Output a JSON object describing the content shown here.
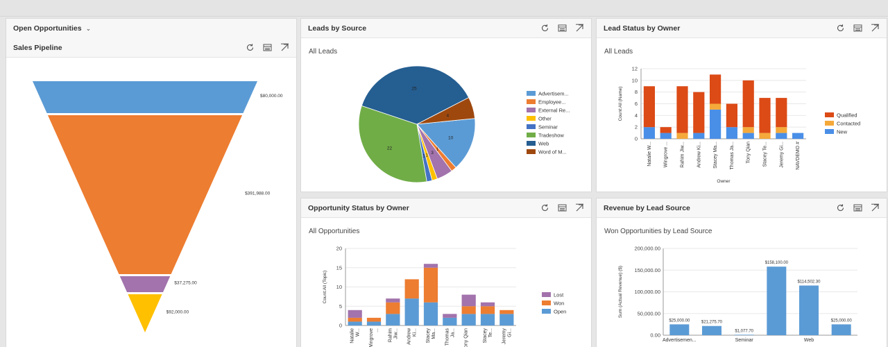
{
  "dashboard": {
    "view_selector": "Open Opportunities"
  },
  "panels": {
    "pipeline": {
      "title": "Sales Pipeline"
    },
    "leads_source": {
      "title": "Leads by Source",
      "subtitle": "All Leads"
    },
    "lead_status": {
      "title": "Lead Status by Owner",
      "subtitle": "All Leads"
    },
    "opp_status": {
      "title": "Opportunity Status by Owner",
      "subtitle": "All Opportunities"
    },
    "revenue": {
      "title": "Revenue by Lead Source",
      "subtitle": "Won Opportunities by Lead Source"
    }
  },
  "icons": [
    "refresh-icon",
    "view-records-icon",
    "expand-icon"
  ],
  "chart_data": [
    {
      "id": "pipeline",
      "type": "funnel",
      "title": "Sales Pipeline",
      "stages": [
        {
          "value": 80000,
          "label": "$80,000.00",
          "color": "#5b9bd5"
        },
        {
          "value": 391988,
          "label": "$391,988.00",
          "color": "#ed7d31"
        },
        {
          "value": 37275,
          "label": "$37,275.00",
          "color": "#a273ac"
        },
        {
          "value": 92000,
          "label": "$92,000.00",
          "color": "#ffc000"
        }
      ]
    },
    {
      "id": "leads_source",
      "type": "pie",
      "title": "Leads by Source",
      "slices": [
        {
          "name": "Advertisem...",
          "value": 10,
          "color": "#5b9bd5"
        },
        {
          "name": "Employee...",
          "value": 1,
          "color": "#ed7d31"
        },
        {
          "name": "External Re...",
          "value": 3,
          "color": "#a273ac"
        },
        {
          "name": "Other",
          "value": 1,
          "color": "#ffc000"
        },
        {
          "name": "Seminar",
          "value": 1,
          "color": "#4472c4"
        },
        {
          "name": "Tradeshow",
          "value": 22,
          "color": "#70ad47"
        },
        {
          "name": "Web",
          "value": 25,
          "color": "#255e91"
        },
        {
          "name": "Word of M...",
          "value": 4,
          "color": "#9e480e"
        }
      ],
      "labels_shown": [
        "10",
        "3",
        "1",
        "22",
        "25",
        "4"
      ]
    },
    {
      "id": "lead_status",
      "type": "bar",
      "title": "Lead Status by Owner",
      "xlabel": "Owner",
      "ylabel": "Count:All (Name)",
      "ylim": [
        0,
        12
      ],
      "yticks": [
        "0",
        "2",
        "4",
        "6",
        "8",
        "10",
        "12"
      ],
      "categories": [
        "Natalie W...",
        "Wingrove ...",
        "Rahim Jiw...",
        "Andrew Ki...",
        "Stacey Ma...",
        "Thomas Ja...",
        "Tony Qian",
        "Stacey Te...",
        "Jeremy Gi...",
        "NAVDEMO #"
      ],
      "series": [
        {
          "name": "New",
          "color": "#4a8fe7",
          "values": [
            2,
            1,
            0,
            1,
            5,
            2,
            1,
            0,
            1,
            1
          ]
        },
        {
          "name": "Contacted",
          "color": "#f5a93a",
          "values": [
            0,
            0,
            1,
            0,
            1,
            0,
            1,
            1,
            1,
            0
          ]
        },
        {
          "name": "Qualified",
          "color": "#dc4a16",
          "values": [
            7,
            1,
            8,
            7,
            5,
            4,
            8,
            6,
            5,
            0
          ]
        }
      ],
      "legend": [
        "Qualified",
        "Contacted",
        "New"
      ]
    },
    {
      "id": "opp_status",
      "type": "bar",
      "title": "Opportunity Status by Owner",
      "ylabel": "Count:All (Topic)",
      "ylim": [
        0,
        20
      ],
      "yticks": [
        "0",
        "5",
        "10",
        "15",
        "20"
      ],
      "categories": [
        [
          "Natalie",
          "W..."
        ],
        [
          "Wingrove",
          "..."
        ],
        [
          "Rahim",
          "Jiw..."
        ],
        [
          "Andrew",
          "Ki..."
        ],
        [
          "Stacey",
          "Ma..."
        ],
        [
          "Thomas",
          "Ja..."
        ],
        [
          "Tony Qian",
          ""
        ],
        [
          "Stacey",
          "Te..."
        ],
        [
          "Jeremy",
          "Gi..."
        ]
      ],
      "series": [
        {
          "name": "Open",
          "color": "#5b9bd5",
          "values": [
            1,
            1,
            3,
            7,
            6,
            2,
            3,
            3,
            3
          ]
        },
        {
          "name": "Won",
          "color": "#ed7d31",
          "values": [
            1,
            1,
            3,
            5,
            9,
            0,
            2,
            2,
            1
          ]
        },
        {
          "name": "Lost",
          "color": "#a273ac",
          "values": [
            2,
            0,
            1,
            0,
            1,
            1,
            3,
            1,
            0
          ]
        }
      ],
      "legend": [
        "Lost",
        "Won",
        "Open"
      ]
    },
    {
      "id": "revenue",
      "type": "bar",
      "title": "Revenue by Lead Source",
      "ylabel": "Sum (Actual Revenue) ($)",
      "ylim": [
        0,
        200000
      ],
      "yticks": [
        "0.00",
        "50,000.00",
        "100,000.00",
        "150,000.00",
        "200,000.00"
      ],
      "categories": [
        "Advertisemen...",
        "",
        "Seminar",
        "",
        "Web",
        ""
      ],
      "values": [
        25000,
        21275.7,
        1077.7,
        158100,
        114502.3,
        25000
      ],
      "data_labels": [
        "$25,000.00",
        "$21,275.70",
        "$1,077.70",
        "$158,100.00",
        "$114,502.30",
        "$25,000.00"
      ],
      "color": "#5b9bd5"
    }
  ]
}
